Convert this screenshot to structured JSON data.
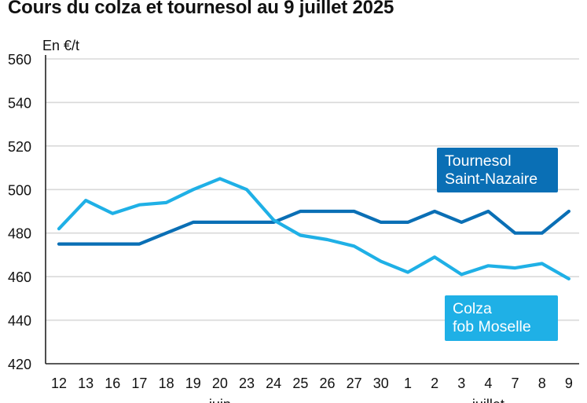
{
  "title": "Cours du colza et tournesol au 9 juillet 2025",
  "colors": {
    "tournesol": "#0a6fb5",
    "colza": "#1fb0e6",
    "grid": "#d9d9d9",
    "axis": "#222222"
  },
  "chart_data": {
    "type": "line",
    "title": "Cours du colza et tournesol au 9 juillet 2025",
    "unit_label": "En €/t",
    "xlabel": "",
    "ylabel": "En €/t",
    "ylim": [
      420,
      560
    ],
    "yticks": [
      "560",
      "540",
      "520",
      "500",
      "480",
      "460",
      "440",
      "420"
    ],
    "categories": [
      "12",
      "13",
      "16",
      "17",
      "18",
      "19",
      "20",
      "23",
      "24",
      "25",
      "26",
      "27",
      "30",
      "1",
      "2",
      "3",
      "4",
      "7",
      "8",
      "9"
    ],
    "month_labels": [
      "juin",
      "juillet"
    ],
    "grid": true,
    "series": [
      {
        "name": "Tournesol Saint-Nazaire",
        "label_lines": [
          "Tournesol",
          "Saint-Nazaire"
        ],
        "values": [
          475,
          475,
          475,
          475,
          480,
          485,
          485,
          485,
          485,
          490,
          490,
          490,
          485,
          485,
          490,
          485,
          490,
          480,
          480,
          490
        ]
      },
      {
        "name": "Colza fob Moselle",
        "label_lines": [
          "Colza",
          "fob Moselle"
        ],
        "values": [
          482,
          495,
          489,
          493,
          494,
          500,
          505,
          500,
          486,
          479,
          477,
          474,
          467,
          462,
          469,
          461,
          465,
          464,
          466,
          459
        ]
      }
    ]
  }
}
